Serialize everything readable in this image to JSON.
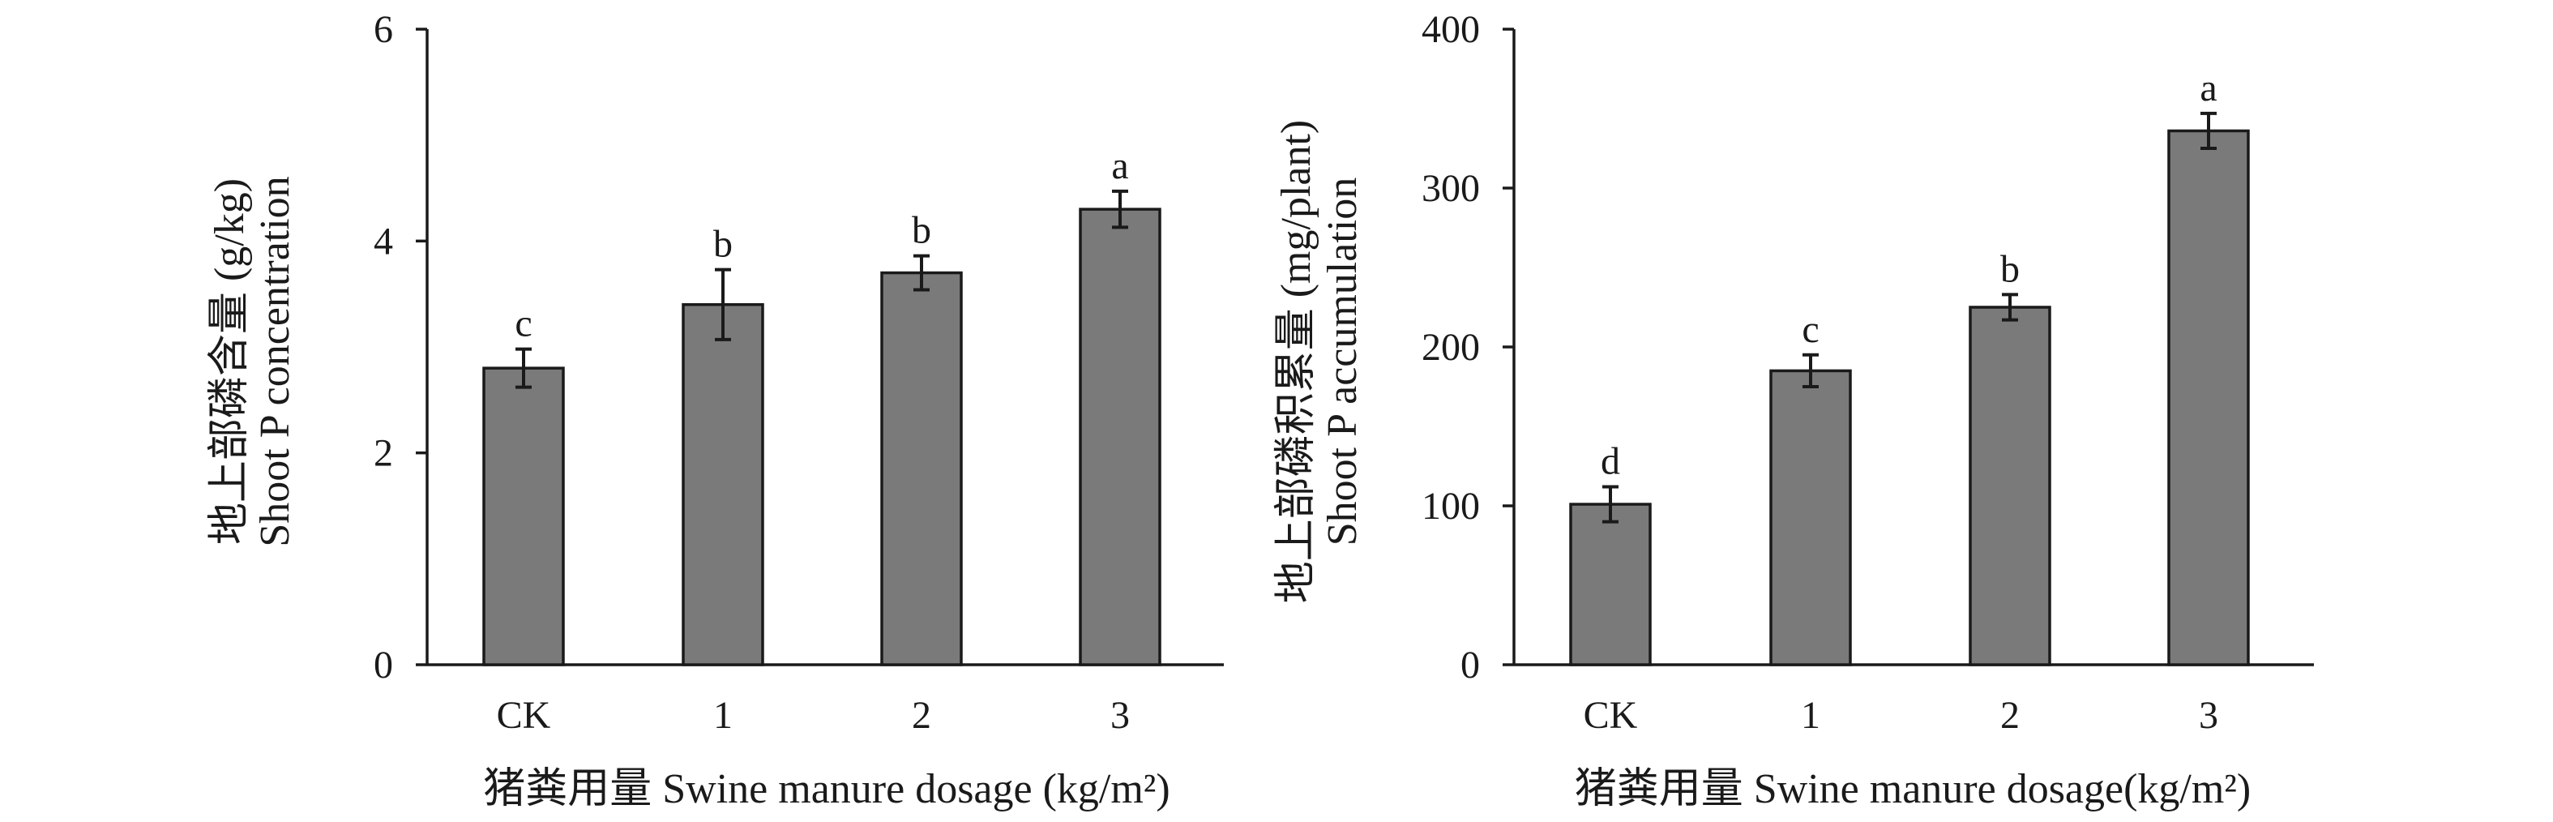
{
  "chart_data": [
    {
      "type": "bar",
      "categories": [
        "CK",
        "1",
        "2",
        "3"
      ],
      "values": [
        2.8,
        3.4,
        3.7,
        4.3
      ],
      "errors": [
        0.18,
        0.33,
        0.16,
        0.17
      ],
      "significance": [
        "c",
        "b",
        "b",
        "a"
      ],
      "ylim": [
        0,
        6
      ],
      "yticks": [
        "0",
        "2",
        "4",
        "6"
      ],
      "ylabel_zh": "地上部磷含量 (g/kg)",
      "ylabel_en": "Shoot P concentration",
      "xlabel": "猪粪用量 Swine manure dosage (kg/m²)",
      "color": "#7a7a7a"
    },
    {
      "type": "bar",
      "categories": [
        "CK",
        "1",
        "2",
        "3"
      ],
      "values": [
        101,
        185,
        225,
        336
      ],
      "errors": [
        11,
        10,
        8,
        11
      ],
      "significance": [
        "d",
        "c",
        "b",
        "a"
      ],
      "ylim": [
        0,
        400
      ],
      "yticks": [
        "0",
        "100",
        "200",
        "300",
        "400"
      ],
      "ylabel_zh": "地上部磷积累量 (mg/plant)",
      "ylabel_en": "Shoot P accumulation",
      "xlabel": "猪粪用量 Swine manure dosage(kg/m²)",
      "color": "#7a7a7a"
    }
  ]
}
